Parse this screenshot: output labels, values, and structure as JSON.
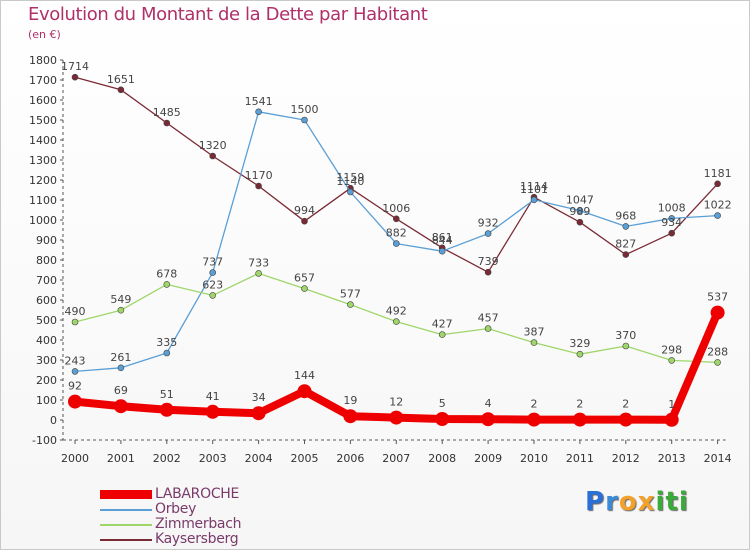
{
  "title": "Evolution du Montant de la Dette par Habitant",
  "subtitle": "(en €)",
  "brand": {
    "letters": [
      {
        "ch": "P",
        "color": "#2a6fd6"
      },
      {
        "ch": "r",
        "color": "#3a8bd8"
      },
      {
        "ch": "o",
        "color": "#f2a22b"
      },
      {
        "ch": "x",
        "color": "#f2a22b"
      },
      {
        "ch": "i",
        "color": "#3aaa3a"
      },
      {
        "ch": "t",
        "color": "#3aaa3a"
      },
      {
        "ch": "i",
        "color": "#3aaa3a"
      }
    ]
  },
  "chart_data": {
    "type": "line",
    "categories": [
      "2000",
      "2001",
      "2002",
      "2003",
      "2004",
      "2005",
      "2006",
      "2007",
      "2008",
      "2009",
      "2010",
      "2011",
      "2012",
      "2013",
      "2014"
    ],
    "ylim": [
      -100,
      1800
    ],
    "yticks": [
      -100,
      0,
      100,
      200,
      300,
      400,
      500,
      600,
      700,
      800,
      900,
      1000,
      1100,
      1200,
      1300,
      1400,
      1500,
      1600,
      1700,
      1800
    ],
    "grid": false,
    "legend_position": "bottom-left",
    "series": [
      {
        "name": "LABAROCHE",
        "color": "#ee0000",
        "width": 8,
        "marker": 7,
        "values": [
          92,
          69,
          51,
          41,
          34,
          144,
          19,
          12,
          5,
          4,
          2,
          2,
          2,
          1,
          537
        ]
      },
      {
        "name": "Orbey",
        "color": "#5a9fd6",
        "width": 1.3,
        "marker": 3,
        "values": [
          243,
          261,
          335,
          737,
          1541,
          1500,
          1140,
          882,
          844,
          932,
          1101,
          1047,
          968,
          1008,
          1022
        ]
      },
      {
        "name": "Zimmerbach",
        "color": "#9fd66a",
        "width": 1.3,
        "marker": 3,
        "values": [
          490,
          549,
          678,
          623,
          733,
          657,
          577,
          492,
          427,
          457,
          387,
          329,
          370,
          298,
          288
        ]
      },
      {
        "name": "Kaysersberg",
        "color": "#7a2a35",
        "width": 1.3,
        "marker": 3,
        "values": [
          1714,
          1651,
          1485,
          1320,
          1170,
          994,
          1159,
          1006,
          861,
          739,
          1114,
          989,
          827,
          934,
          1181
        ]
      }
    ]
  }
}
